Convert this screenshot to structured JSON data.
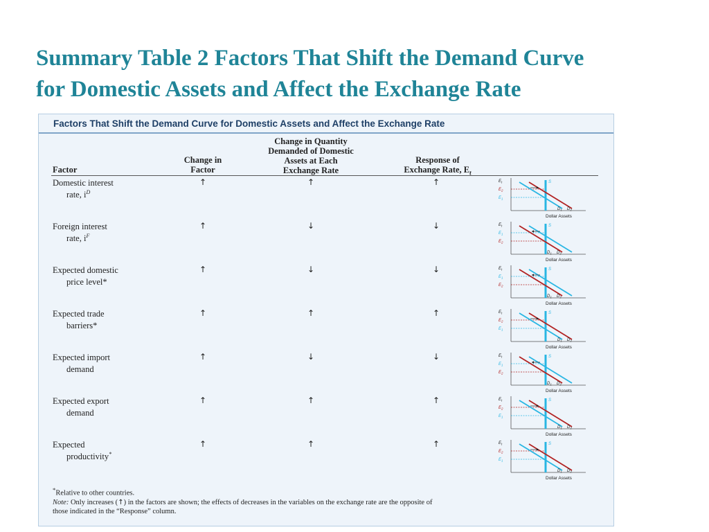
{
  "slide": {
    "title_line1": "Summary Table 2 Factors That Shift the Demand Curve",
    "title_line2": "for Domestic Assets and Affect the Exchange Rate"
  },
  "table": {
    "caption": "Factors That Shift the Demand Curve for Domestic Assets and Affect the Exchange Rate",
    "headers": {
      "factor": "Factor",
      "change_l1": "Change in",
      "change_l2": "Factor",
      "qty_l1": "Change in Quantity",
      "qty_l2": "Demanded of Domestic",
      "qty_l3": "Assets at Each",
      "qty_l4": "Exchange Rate",
      "resp_l1": "Response of",
      "resp_l2": "Exchange Rate, E",
      "resp_sub": "t"
    },
    "arrow_glyphs": {
      "up": "↑",
      "down": "↓"
    },
    "graph_labels": {
      "e_axis": "E",
      "e_sub": "t",
      "e1": "E",
      "e2": "E",
      "one": "1",
      "two": "2",
      "s": "S",
      "d": "D",
      "x_axis": "Dollar Assets"
    },
    "rows": [
      {
        "line1": "Domestic interest",
        "line2": "rate, i",
        "sup": "D",
        "change": "up",
        "quantity": "up",
        "response": "up"
      },
      {
        "line1": "Foreign interest",
        "line2": "rate, i",
        "sup": "F",
        "change": "up",
        "quantity": "down",
        "response": "down"
      },
      {
        "line1": "Expected domestic",
        "line2": "price level*",
        "sup": "",
        "change": "up",
        "quantity": "down",
        "response": "down"
      },
      {
        "line1": "Expected trade",
        "line2": "barriers*",
        "sup": "",
        "change": "up",
        "quantity": "up",
        "response": "up"
      },
      {
        "line1": "Expected import",
        "line2": "demand",
        "sup": "",
        "change": "up",
        "quantity": "down",
        "response": "down"
      },
      {
        "line1": "Expected export",
        "line2": "demand",
        "sup": "",
        "change": "up",
        "quantity": "up",
        "response": "up"
      },
      {
        "line1": "Expected",
        "line2": "productivity",
        "sup": "*",
        "change": "up",
        "quantity": "up",
        "response": "up"
      }
    ],
    "footnote_star": "*",
    "footnote": "Relative to other countries.",
    "note_label": "Note:",
    "note_part1": " Only increases (",
    "note_arrow": "↑",
    "note_part2": ") in the factors are shown; the effects of decreases in the variables on the exchange rate are the opposite of",
    "note_line2": "those indicated in the “Response” column."
  },
  "colors": {
    "title": "#1f8497",
    "panel_bg": "#eef4fa",
    "caption": "#1e3f66",
    "supply": "#29b6e3",
    "demand_initial": "#29b6e3",
    "demand_new": "#b22222"
  }
}
